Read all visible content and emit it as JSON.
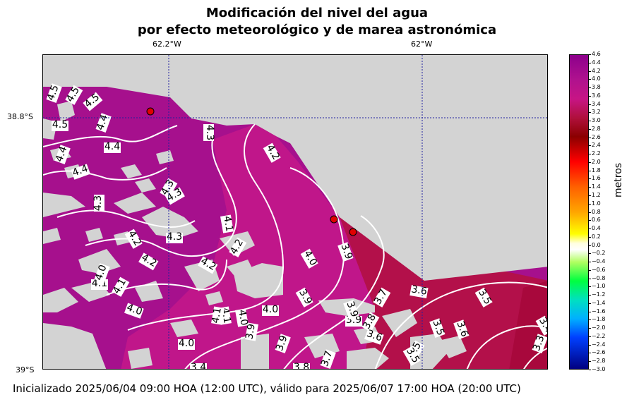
{
  "title_line1": "Modificación del nivel del agua",
  "title_line2": "por efecto meteorológico y de marea astronómica",
  "top_axis_labels": [
    "62.2°W",
    "62°W"
  ],
  "left_axis_labels": [
    "38.8°S",
    "39°S"
  ],
  "colorbar": {
    "title": "metros",
    "ticks": [
      "4.6",
      "4.4",
      "4.2",
      "4.0",
      "3.8",
      "3.6",
      "3.4",
      "3.2",
      "3.0",
      "2.8",
      "2.6",
      "2.4",
      "2.2",
      "2.0",
      "1.8",
      "1.6",
      "1.4",
      "1.2",
      "1.0",
      "0.8",
      "0.6",
      "0.4",
      "0.2",
      "0.0",
      "−0.2",
      "−0.4",
      "−0.6",
      "−0.8",
      "−1.0",
      "−1.2",
      "−1.4",
      "−1.6",
      "−1.8",
      "−2.0",
      "−2.2",
      "−2.4",
      "−2.6",
      "−2.8",
      "−3.0"
    ],
    "range": [
      -3.0,
      4.6
    ]
  },
  "contour_labels": [
    "4.5",
    "4.5",
    "4.5",
    "4.5",
    "4.4",
    "4.4",
    "4.4",
    "4.4",
    "4.3",
    "4.3",
    "4.3",
    "4.3",
    "4.2",
    "4.2",
    "4.2",
    "4.2",
    "4.1",
    "4.1",
    "4.1",
    "4.1",
    "4.0",
    "4.0",
    "4.0",
    "4.0",
    "4.0",
    "3.9",
    "3.9",
    "3.9",
    "3.9",
    "3.9",
    "3.8",
    "3.8",
    "3.7",
    "3.7",
    "3.6",
    "3.6",
    "3.5",
    "3.5",
    "3.5",
    "3.4",
    "3.3",
    "3.9",
    "4.3",
    "4.2",
    "4.1",
    "4.0",
    "3.6",
    "3.5",
    "3.4"
  ],
  "stations": [
    "station-1",
    "station-2",
    "station-3"
  ],
  "footer": "Inicializado 2025/06/04 09:00 HOA (12:00 UTC), válido para 2025/06/07 17:00 HOA (20:00 UTC)"
}
